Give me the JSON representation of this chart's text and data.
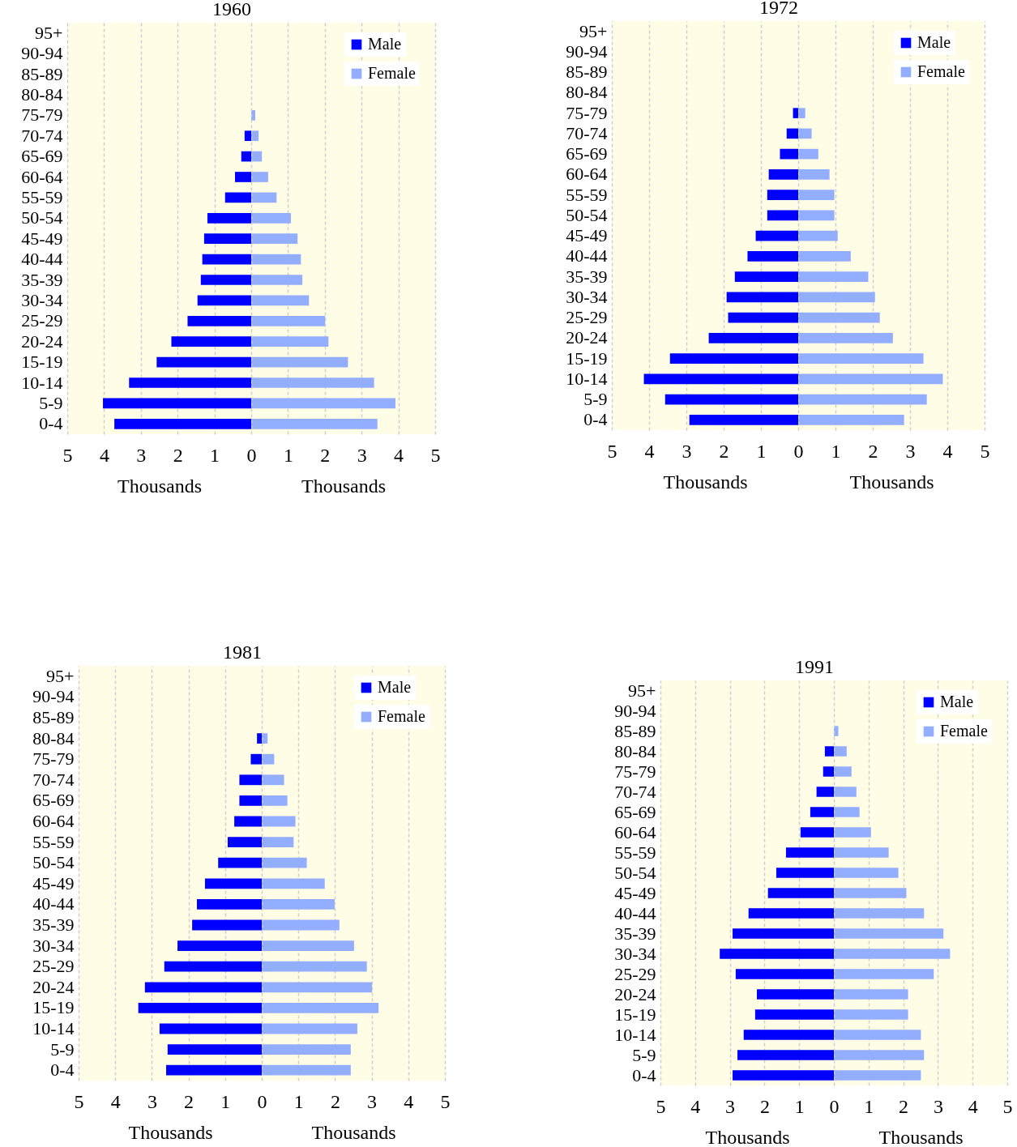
{
  "chart_data": [
    {
      "type": "bar",
      "orientation": "horizontal",
      "title": "1960",
      "categories": [
        "95+",
        "90-94",
        "85-89",
        "80-84",
        "75-79",
        "70-74",
        "65-69",
        "60-64",
        "55-59",
        "50-54",
        "45-49",
        "40-44",
        "35-39",
        "30-34",
        "25-29",
        "20-24",
        "15-19",
        "10-14",
        "5-9",
        "0-4"
      ],
      "series": [
        {
          "name": "Male",
          "color": "#0000ff",
          "values": [
            null,
            null,
            null,
            null,
            null,
            0.18,
            0.27,
            0.44,
            0.71,
            1.19,
            1.28,
            1.33,
            1.37,
            1.46,
            1.73,
            2.17,
            2.57,
            3.32,
            4.03,
            3.72
          ]
        }
      ],
      "xlim": [
        5,
        0
      ],
      "xticks": [
        5,
        4,
        3,
        2,
        1,
        0
      ],
      "xlabel": "Thousands",
      "grid": "x",
      "legend": "right"
    },
    {
      "type": "bar",
      "orientation": "horizontal",
      "categories": [
        null,
        null,
        null,
        null,
        null,
        null,
        null,
        null,
        null,
        null,
        null,
        null,
        null,
        null,
        null,
        null,
        null,
        null,
        null,
        null
      ],
      "series": [
        {
          "name": "Female",
          "color": "#94aeff",
          "values": [
            null,
            null,
            null,
            null,
            0.11,
            0.2,
            0.29,
            0.46,
            0.69,
            1.08,
            1.26,
            1.35,
            1.39,
            1.57,
            2.01,
            2.1,
            2.63,
            3.34,
            3.92,
            3.43
          ]
        }
      ],
      "xlim": [
        0,
        5
      ],
      "xticks": [
        1,
        2,
        3,
        4,
        5
      ],
      "xlabel": "Thousands",
      "grid": "x",
      "legend": "top right"
    },
    {
      "type": "bar",
      "orientation": "horizontal",
      "title": "1972",
      "categories": [
        "95+",
        "90-94",
        "85-89",
        "80-84",
        "75-79",
        "70-74",
        "65-69",
        "60-64",
        "55-59",
        "50-54",
        "45-49",
        "40-44",
        "35-39",
        "30-34",
        "25-29",
        "20-24",
        "15-19",
        "10-14",
        "5-9",
        "0-4"
      ],
      "series": [
        {
          "name": "Male",
          "color": "#0000ff",
          "values": [
            null,
            null,
            null,
            null,
            0.14,
            0.31,
            0.49,
            0.79,
            0.83,
            0.83,
            1.14,
            1.36,
            1.7,
            1.92,
            1.88,
            2.4,
            3.44,
            4.14,
            3.57,
            2.92
          ]
        }
      ],
      "xlim": [
        5,
        0
      ],
      "xticks": [
        5,
        4,
        3,
        2,
        1,
        0
      ],
      "xlabel": "Thousands",
      "grid": "x",
      "legend": "right"
    },
    {
      "type": "bar",
      "orientation": "horizontal",
      "categories": [
        null,
        null,
        null,
        null,
        null,
        null,
        null,
        null,
        null,
        null,
        null,
        null,
        null,
        null,
        null,
        null,
        null,
        null,
        null,
        null
      ],
      "series": [
        {
          "name": "Female",
          "color": "#94aeff",
          "values": [
            null,
            null,
            null,
            null,
            0.19,
            0.36,
            0.54,
            0.84,
            0.97,
            0.97,
            1.06,
            1.41,
            1.88,
            2.06,
            2.19,
            2.54,
            3.36,
            3.88,
            3.45,
            2.84
          ]
        }
      ],
      "xlim": [
        0,
        5
      ],
      "xticks": [
        1,
        2,
        3,
        4,
        5
      ],
      "xlabel": "Thousands",
      "grid": "x",
      "legend": "top right"
    },
    {
      "type": "bar",
      "orientation": "horizontal",
      "title": "1981",
      "categories": [
        "95+",
        "90-94",
        "85-89",
        "80-84",
        "75-79",
        "70-74",
        "65-69",
        "60-64",
        "55-59",
        "50-54",
        "45-49",
        "40-44",
        "35-39",
        "30-34",
        "25-29",
        "20-24",
        "15-19",
        "10-14",
        "5-9",
        "0-4"
      ],
      "series": [
        {
          "name": "Male",
          "color": "#0000ff",
          "values": [
            null,
            null,
            null,
            0.13,
            0.3,
            0.61,
            0.61,
            0.75,
            0.93,
            1.19,
            1.55,
            1.77,
            1.9,
            2.3,
            2.66,
            3.19,
            3.37,
            2.79,
            2.57,
            2.61
          ]
        }
      ],
      "xlim": [
        5,
        0
      ],
      "xticks": [
        5,
        4,
        3,
        2,
        1,
        0
      ],
      "xlabel": "Thousands",
      "grid": "x",
      "legend": "right"
    },
    {
      "type": "bar",
      "orientation": "horizontal",
      "categories": [
        null,
        null,
        null,
        null,
        null,
        null,
        null,
        null,
        null,
        null,
        null,
        null,
        null,
        null,
        null,
        null,
        null,
        null,
        null,
        null
      ],
      "series": [
        {
          "name": "Female",
          "color": "#94aeff",
          "values": [
            null,
            null,
            null,
            0.16,
            0.34,
            0.61,
            0.7,
            0.92,
            0.87,
            1.23,
            1.72,
            1.99,
            2.12,
            2.52,
            2.87,
            3.01,
            3.19,
            2.61,
            2.43,
            2.43
          ]
        }
      ],
      "xlim": [
        0,
        5
      ],
      "xticks": [
        1,
        2,
        3,
        4,
        5
      ],
      "xlabel": "Thousands",
      "grid": "x",
      "legend": "top right"
    },
    {
      "type": "bar",
      "orientation": "horizontal",
      "title": "1991",
      "categories": [
        "95+",
        "90-94",
        "85-89",
        "80-84",
        "75-79",
        "70-74",
        "65-69",
        "60-64",
        "55-59",
        "50-54",
        "45-49",
        "40-44",
        "35-39",
        "30-34",
        "25-29",
        "20-24",
        "15-19",
        "10-14",
        "5-9",
        "0-4"
      ],
      "series": [
        {
          "name": "Male",
          "color": "#0000ff",
          "values": [
            null,
            null,
            null,
            0.26,
            0.31,
            0.5,
            0.68,
            0.96,
            1.38,
            1.66,
            1.9,
            2.46,
            2.92,
            3.29,
            2.83,
            2.22,
            2.27,
            2.6,
            2.78,
            2.92
          ]
        }
      ],
      "xlim": [
        5,
        0
      ],
      "xticks": [
        5,
        4,
        3,
        2,
        1,
        0
      ],
      "xlabel": "Thousands",
      "grid": "x",
      "legend": "right"
    },
    {
      "type": "bar",
      "orientation": "horizontal",
      "categories": [
        null,
        null,
        null,
        null,
        null,
        null,
        null,
        null,
        null,
        null,
        null,
        null,
        null,
        null,
        null,
        null,
        null,
        null,
        null,
        null
      ],
      "series": [
        {
          "name": "Female",
          "color": "#94aeff",
          "values": [
            null,
            null,
            0.13,
            0.37,
            0.51,
            0.65,
            0.74,
            1.07,
            1.58,
            1.86,
            2.09,
            2.6,
            3.16,
            3.35,
            2.88,
            2.14,
            2.14,
            2.51,
            2.6,
            2.51
          ]
        }
      ],
      "xlim": [
        0,
        5
      ],
      "xticks": [
        1,
        2,
        3,
        4,
        5
      ],
      "xlabel": "Thousands",
      "grid": "x",
      "legend": "top right"
    }
  ]
}
